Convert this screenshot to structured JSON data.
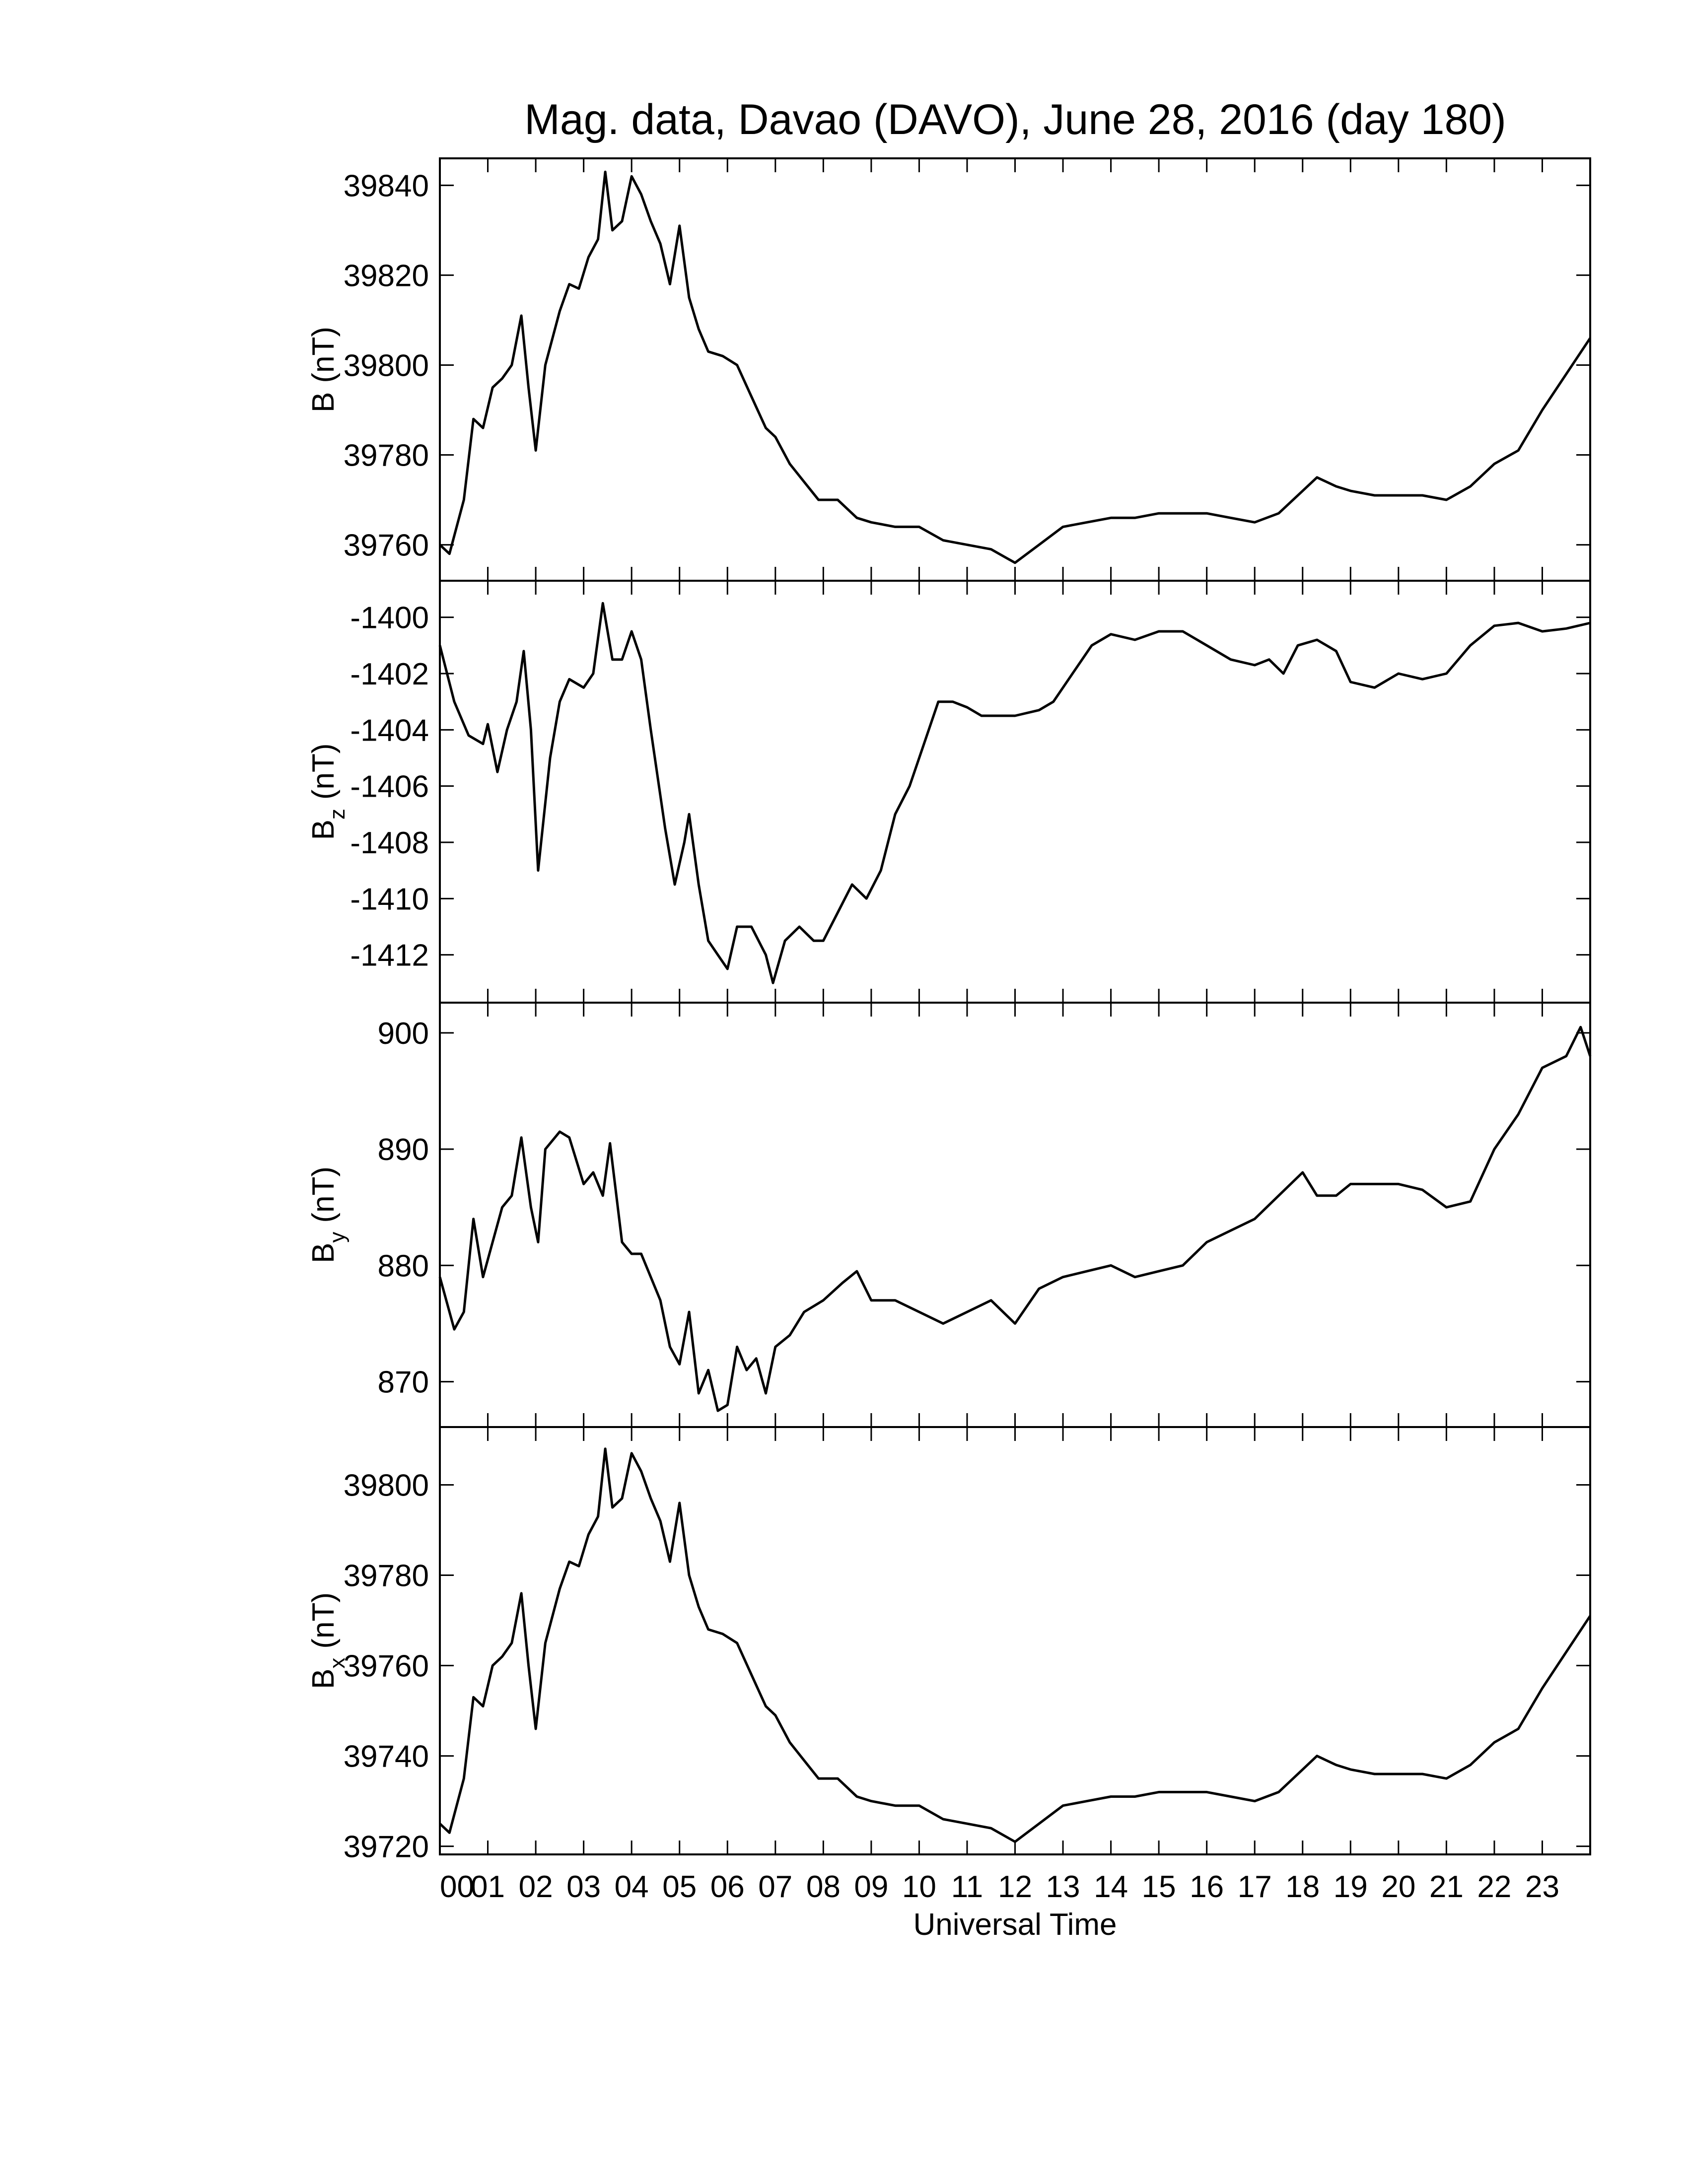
{
  "chart_data": [
    {
      "type": "line",
      "title": "Mag. data, Davao (DAVO), June 28, 2016 (day 180)",
      "ylabel": {
        "symbol": "B",
        "unit": "(nT)"
      },
      "color": "#000000",
      "x": [
        0,
        0.2,
        0.5,
        0.7,
        0.9,
        1.1,
        1.3,
        1.5,
        1.7,
        1.85,
        2.0,
        2.2,
        2.5,
        2.7,
        2.9,
        3.1,
        3.3,
        3.45,
        3.6,
        3.8,
        4.0,
        4.2,
        4.4,
        4.6,
        4.8,
        5.0,
        5.2,
        5.4,
        5.6,
        5.9,
        6.2,
        6.5,
        6.8,
        7.0,
        7.3,
        7.6,
        7.9,
        8.3,
        8.7,
        9.0,
        9.5,
        10.0,
        10.5,
        11.0,
        11.5,
        12.0,
        12.5,
        13.0,
        13.5,
        14.0,
        14.5,
        15.0,
        15.5,
        16.0,
        16.5,
        17.0,
        17.5,
        18.0,
        18.3,
        18.7,
        19.0,
        19.5,
        20.0,
        20.5,
        21.0,
        21.5,
        22.0,
        22.5,
        23.0,
        23.5,
        24.0
      ],
      "values": [
        39760,
        39758,
        39770,
        39788,
        39786,
        39795,
        39797,
        39800,
        39811,
        39795,
        39781,
        39800,
        39812,
        39818,
        39817,
        39824,
        39828,
        39843,
        39830,
        39832,
        39842,
        39838,
        39832,
        39827,
        39818,
        39831,
        39815,
        39808,
        39803,
        39802,
        39800,
        39793,
        39786,
        39784,
        39778,
        39774,
        39770,
        39770,
        39766,
        39765,
        39764,
        39764,
        39761,
        39760,
        39759,
        39756,
        39760,
        39764,
        39765,
        39766,
        39766,
        39767,
        39767,
        39767,
        39766,
        39765,
        39767,
        39772,
        39775,
        39773,
        39772,
        39771,
        39771,
        39771,
        39770,
        39773,
        39778,
        39781,
        39790,
        39798,
        39806
      ],
      "ylim": [
        39752,
        39846
      ],
      "yticks": [
        39760,
        39780,
        39800,
        39820,
        39840
      ]
    },
    {
      "type": "line",
      "ylabel": {
        "symbol": "B",
        "subscript": "z",
        "unit": "(nT)"
      },
      "color": "#000000",
      "x": [
        0,
        0.3,
        0.6,
        0.9,
        1.0,
        1.2,
        1.4,
        1.6,
        1.75,
        1.9,
        2.05,
        2.3,
        2.5,
        2.7,
        3.0,
        3.2,
        3.4,
        3.6,
        3.8,
        4.0,
        4.2,
        4.4,
        4.7,
        4.9,
        5.1,
        5.2,
        5.4,
        5.6,
        5.8,
        6.0,
        6.2,
        6.5,
        6.8,
        6.95,
        7.2,
        7.5,
        7.8,
        8.0,
        8.3,
        8.6,
        8.9,
        9.2,
        9.5,
        9.8,
        10.1,
        10.4,
        10.7,
        11.0,
        11.3,
        11.6,
        12.0,
        12.5,
        12.8,
        13.2,
        13.6,
        14.0,
        14.5,
        15.0,
        15.5,
        16.0,
        16.5,
        17.0,
        17.3,
        17.6,
        17.9,
        18.3,
        18.7,
        19.0,
        19.5,
        20.0,
        20.5,
        21.0,
        21.5,
        22.0,
        22.5,
        23.0,
        23.5,
        24.0
      ],
      "values": [
        -1401,
        -1403,
        -1404.2,
        -1404.5,
        -1403.8,
        -1405.5,
        -1404,
        -1403,
        -1401.2,
        -1404,
        -1409,
        -1405,
        -1403,
        -1402.2,
        -1402.5,
        -1402,
        -1399.5,
        -1401.5,
        -1401.5,
        -1400.5,
        -1401.5,
        -1404,
        -1407.5,
        -1409.5,
        -1408,
        -1407,
        -1409.5,
        -1411.5,
        -1412,
        -1412.5,
        -1411,
        -1411,
        -1412,
        -1413,
        -1411.5,
        -1411,
        -1411.5,
        -1411.5,
        -1410.5,
        -1409.5,
        -1410,
        -1409,
        -1407,
        -1406,
        -1404.5,
        -1403,
        -1403,
        -1403.2,
        -1403.5,
        -1403.5,
        -1403.5,
        -1403.3,
        -1403,
        -1402,
        -1401,
        -1400.6,
        -1400.8,
        -1400.5,
        -1400.5,
        -1401,
        -1401.5,
        -1401.7,
        -1401.5,
        -1402,
        -1401,
        -1400.8,
        -1401.2,
        -1402.3,
        -1402.5,
        -1402,
        -1402.2,
        -1402,
        -1401,
        -1400.3,
        -1400.2,
        -1400.5,
        -1400.4,
        -1400.2
      ],
      "ylim": [
        -1413.7,
        -1398.7
      ],
      "yticks": [
        -1412,
        -1410,
        -1408,
        -1406,
        -1404,
        -1402,
        -1400
      ]
    },
    {
      "type": "line",
      "ylabel": {
        "symbol": "B",
        "subscript": "y",
        "unit": "(nT)"
      },
      "color": "#000000",
      "x": [
        0,
        0.3,
        0.5,
        0.7,
        0.9,
        1.1,
        1.3,
        1.5,
        1.7,
        1.9,
        2.05,
        2.2,
        2.5,
        2.7,
        3.0,
        3.2,
        3.4,
        3.55,
        3.8,
        4.0,
        4.2,
        4.4,
        4.6,
        4.8,
        5.0,
        5.2,
        5.4,
        5.6,
        5.8,
        6.0,
        6.2,
        6.4,
        6.6,
        6.8,
        7.0,
        7.3,
        7.6,
        8.0,
        8.4,
        8.7,
        9.0,
        9.5,
        10.0,
        10.5,
        11.0,
        11.5,
        12.0,
        12.5,
        13.0,
        13.5,
        14.0,
        14.5,
        15.0,
        15.5,
        16.0,
        16.5,
        17.0,
        17.5,
        18.0,
        18.3,
        18.7,
        19.0,
        19.5,
        20.0,
        20.5,
        21.0,
        21.5,
        22.0,
        22.5,
        23.0,
        23.5,
        23.8,
        24.0
      ],
      "values": [
        879,
        874.5,
        876,
        884,
        879,
        882,
        885,
        886,
        891,
        885,
        882,
        890,
        891.5,
        891,
        887,
        888,
        886,
        890.5,
        882,
        881,
        881,
        879,
        877,
        873,
        871.5,
        876,
        869,
        871,
        867.5,
        868,
        873,
        871,
        872,
        869,
        873,
        874,
        876,
        877,
        878.5,
        879.5,
        877,
        877,
        876,
        875,
        876,
        877,
        875,
        878,
        879,
        879.5,
        880,
        879,
        879.5,
        880,
        882,
        883,
        884,
        886,
        888,
        886,
        886,
        887,
        887,
        887,
        886.5,
        885,
        885.5,
        890,
        893,
        897,
        898,
        900.5,
        898
      ],
      "ylim": [
        866.1,
        902.6
      ],
      "yticks": [
        870,
        880,
        890,
        900
      ]
    },
    {
      "type": "line",
      "ylabel": {
        "symbol": "B",
        "subscript": "x",
        "unit": "(nT)"
      },
      "xlabel": "Universal Time",
      "color": "#000000",
      "x": [
        0,
        0.2,
        0.5,
        0.7,
        0.9,
        1.1,
        1.3,
        1.5,
        1.7,
        1.85,
        2.0,
        2.2,
        2.5,
        2.7,
        2.9,
        3.1,
        3.3,
        3.45,
        3.6,
        3.8,
        4.0,
        4.2,
        4.4,
        4.6,
        4.8,
        5.0,
        5.2,
        5.4,
        5.6,
        5.9,
        6.2,
        6.5,
        6.8,
        7.0,
        7.3,
        7.6,
        7.9,
        8.3,
        8.7,
        9.0,
        9.5,
        10.0,
        10.5,
        11.0,
        11.5,
        12.0,
        12.5,
        13.0,
        13.5,
        14.0,
        14.5,
        15.0,
        15.5,
        16.0,
        16.5,
        17.0,
        17.5,
        18.0,
        18.3,
        18.7,
        19.0,
        19.5,
        20.0,
        20.5,
        21.0,
        21.5,
        22.0,
        22.5,
        23.0,
        23.5,
        24.0
      ],
      "values": [
        39725,
        39723,
        39735,
        39753,
        39751,
        39760,
        39762,
        39765,
        39776,
        39760,
        39746,
        39765,
        39777,
        39783,
        39782,
        39789,
        39793,
        39808,
        39795,
        39797,
        39807,
        39803,
        39797,
        39792,
        39783,
        39796,
        39780,
        39773,
        39768,
        39767,
        39765,
        39758,
        39751,
        39749,
        39743,
        39739,
        39735,
        39735,
        39731,
        39730,
        39729,
        39729,
        39726,
        39725,
        39724,
        39721,
        39725,
        39729,
        39730,
        39731,
        39731,
        39732,
        39732,
        39732,
        39731,
        39730,
        39732,
        39737,
        39740,
        39738,
        39737,
        39736,
        39736,
        39736,
        39735,
        39738,
        39743,
        39746,
        39755,
        39763,
        39771
      ],
      "ylim": [
        39718.2,
        39812.8
      ],
      "yticks": [
        39720,
        39740,
        39760,
        39780,
        39800
      ],
      "xlim": [
        0,
        24
      ],
      "xticks": [
        {
          "value": 0,
          "label": "00"
        },
        {
          "value": 1,
          "label": "01"
        },
        {
          "value": 2,
          "label": "02"
        },
        {
          "value": 3,
          "label": "03"
        },
        {
          "value": 4,
          "label": "04"
        },
        {
          "value": 5,
          "label": "05"
        },
        {
          "value": 6,
          "label": "06"
        },
        {
          "value": 7,
          "label": "07"
        },
        {
          "value": 8,
          "label": "08"
        },
        {
          "value": 9,
          "label": "09"
        },
        {
          "value": 10,
          "label": "10"
        },
        {
          "value": 11,
          "label": "11"
        },
        {
          "value": 12,
          "label": "12"
        },
        {
          "value": 13,
          "label": "13"
        },
        {
          "value": 14,
          "label": "14"
        },
        {
          "value": 15,
          "label": "15"
        },
        {
          "value": 16,
          "label": "16"
        },
        {
          "value": 17,
          "label": "17"
        },
        {
          "value": 18,
          "label": "18"
        },
        {
          "value": 19,
          "label": "19"
        },
        {
          "value": 20,
          "label": "20"
        },
        {
          "value": 21,
          "label": "21"
        },
        {
          "value": 22,
          "label": "22"
        },
        {
          "value": 23,
          "label": "23"
        }
      ]
    }
  ]
}
